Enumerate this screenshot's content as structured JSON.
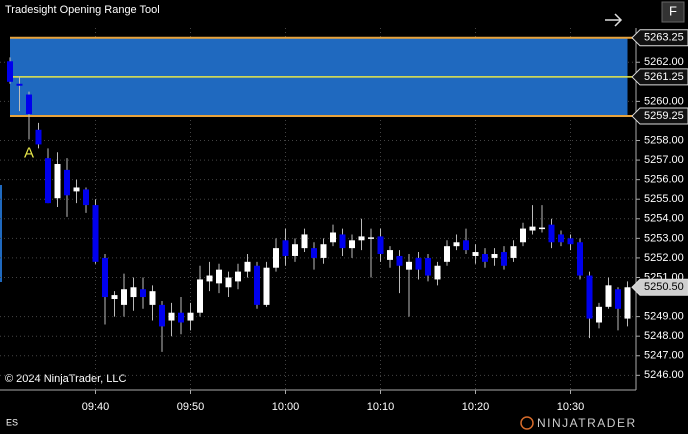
{
  "chart_data": {
    "type": "candlestick",
    "title": "Tradesight Opening Range Tool",
    "copyright": "© 2024 NinjaTrader, LLC",
    "instrument": "ES",
    "brand": "NINJATRADER",
    "button": "F",
    "marker_label": "A",
    "marker_index": 2,
    "up_color": "#ffffff",
    "down_color": "#0000ee",
    "range_fill": "#1f69bf",
    "range_border": "#e8a33c",
    "mid_color": "#e8e84a",
    "grid": true,
    "categories": [
      null,
      null,
      null,
      null,
      null,
      null,
      null,
      null,
      null,
      "09:40",
      null,
      null,
      null,
      null,
      null,
      null,
      null,
      null,
      null,
      "09:50",
      null,
      null,
      null,
      null,
      null,
      null,
      null,
      null,
      null,
      "10:00",
      null,
      null,
      null,
      null,
      null,
      null,
      null,
      null,
      null,
      "10:10",
      null,
      null,
      null,
      null,
      null,
      null,
      null,
      null,
      null,
      "10:20",
      null,
      null,
      null,
      null,
      null,
      null,
      null,
      null,
      null,
      "10:30",
      null,
      null,
      null,
      null,
      null,
      null
    ],
    "open": [
      5262.05,
      5260.9,
      5260.35,
      5258.55,
      5257.1,
      5255.05,
      5256.5,
      5255.4,
      5255.5,
      5254.7,
      5252.0,
      5249.9,
      5249.6,
      5250.0,
      5250.4,
      5249.6,
      5249.6,
      5248.8,
      5249.2,
      5248.8,
      5249.2,
      5250.8,
      5250.7,
      5250.5,
      5250.8,
      5251.3,
      5251.6,
      5249.6,
      5251.5,
      5252.9,
      5252.1,
      5252.5,
      5252.5,
      5252.0,
      5252.8,
      5253.2,
      5252.5,
      5252.9,
      5253.0,
      5253.1,
      5251.9,
      5252.1,
      5251.4,
      5252.0,
      5252.0,
      5250.9,
      5251.8,
      5252.6,
      5252.9,
      5252.1,
      5252.2,
      5252.0,
      5252.3,
      5252.0,
      5252.8,
      5253.4,
      5253.5,
      5253.7,
      5253.2,
      5253.0,
      5252.8,
      5251.1,
      5248.7,
      5249.5,
      5250.4,
      5248.9
    ],
    "high": [
      5262.25,
      5261.3,
      5260.5,
      5258.9,
      5257.6,
      5257.4,
      5257.1,
      5256.0,
      5255.6,
      5255.0,
      5252.2,
      5250.3,
      5251.2,
      5251.0,
      5251.0,
      5250.6,
      5249.8,
      5249.7,
      5250.0,
      5249.7,
      5251.6,
      5251.8,
      5251.7,
      5251.3,
      5251.7,
      5252.2,
      5251.8,
      5251.8,
      5253.0,
      5253.5,
      5253.0,
      5253.5,
      5252.8,
      5253.0,
      5253.7,
      5253.5,
      5253.2,
      5254.0,
      5253.5,
      5253.5,
      5252.6,
      5252.4,
      5252.2,
      5252.3,
      5252.2,
      5251.8,
      5252.9,
      5253.2,
      5253.5,
      5252.7,
      5252.5,
      5252.5,
      5252.6,
      5252.9,
      5253.8,
      5254.7,
      5254.7,
      5254.0,
      5253.4,
      5253.2,
      5253.0,
      5251.3,
      5249.7,
      5251.0,
      5250.5,
      5250.8
    ],
    "low": [
      5260.9,
      5259.5,
      5258.05,
      5257.6,
      5254.8,
      5254.6,
      5254.1,
      5254.8,
      5254.3,
      5251.7,
      5248.6,
      5249.0,
      5249.0,
      5249.3,
      5249.4,
      5248.8,
      5247.2,
      5248.0,
      5248.1,
      5248.3,
      5249.0,
      5250.3,
      5250.2,
      5250.0,
      5250.4,
      5251.0,
      5249.4,
      5249.5,
      5251.3,
      5251.6,
      5251.8,
      5252.3,
      5251.4,
      5251.7,
      5252.6,
      5252.1,
      5252.0,
      5252.4,
      5251.0,
      5251.8,
      5251.5,
      5250.2,
      5249.0,
      5250.9,
      5250.8,
      5250.6,
      5251.6,
      5252.4,
      5252.2,
      5251.7,
      5251.5,
      5251.6,
      5251.4,
      5251.8,
      5252.6,
      5253.2,
      5253.3,
      5252.5,
      5252.6,
      5252.4,
      5250.9,
      5247.9,
      5248.4,
      5249.4,
      5248.3,
      5248.5
    ],
    "close": [
      5261.0,
      5260.8,
      5259.35,
      5257.8,
      5254.8,
      5256.8,
      5255.2,
      5255.6,
      5254.7,
      5251.8,
      5250.0,
      5250.1,
      5250.4,
      5250.5,
      5250.0,
      5250.3,
      5248.5,
      5249.2,
      5248.7,
      5249.2,
      5250.9,
      5251.1,
      5251.4,
      5251.0,
      5251.3,
      5251.8,
      5249.6,
      5251.5,
      5252.5,
      5252.1,
      5252.7,
      5253.2,
      5252.0,
      5252.7,
      5253.3,
      5252.5,
      5252.9,
      5253.1,
      5253.05,
      5252.2,
      5252.4,
      5251.6,
      5251.8,
      5251.4,
      5251.1,
      5251.6,
      5252.6,
      5252.8,
      5252.4,
      5252.3,
      5251.8,
      5252.2,
      5251.6,
      5252.6,
      5253.5,
      5253.6,
      5253.55,
      5252.8,
      5252.8,
      5252.7,
      5251.1,
      5248.9,
      5249.5,
      5250.6,
      5249.4,
      5250.5
    ],
    "range": {
      "high": 5263.25,
      "mid": 5261.25,
      "low": 5259.25
    },
    "last_price": {
      "value": 5250.5,
      "label": "5250.50"
    },
    "ylim": [
      5245.25,
      5263.75
    ],
    "yticks": [
      {
        "value": 5246,
        "label": "5246.00"
      },
      {
        "value": 5247,
        "label": "5247.00"
      },
      {
        "value": 5248,
        "label": "5248.00"
      },
      {
        "value": 5249,
        "label": "5249.00"
      },
      {
        "value": 5251,
        "label": "5251.00"
      },
      {
        "value": 5252,
        "label": "5252.00"
      },
      {
        "value": 5253,
        "label": "5253.00"
      },
      {
        "value": 5254,
        "label": "5254.00"
      },
      {
        "value": 5255,
        "label": "5255.00"
      },
      {
        "value": 5256,
        "label": "5256.00"
      },
      {
        "value": 5257,
        "label": "5257.00"
      },
      {
        "value": 5258,
        "label": "5258.00"
      },
      {
        "value": 5260,
        "label": "5260.00"
      },
      {
        "value": 5262,
        "label": "5262.00"
      }
    ]
  }
}
